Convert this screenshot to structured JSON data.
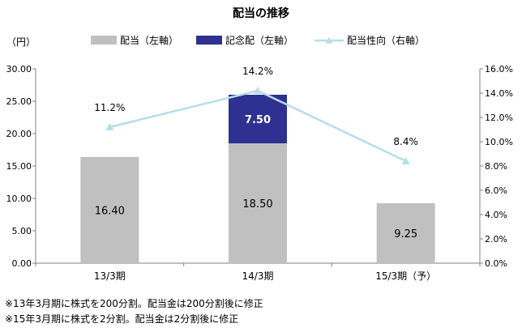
{
  "chart_data": {
    "type": "bar",
    "title": "配当の推移",
    "y_left_unit": "（円）",
    "categories": [
      "13/3期",
      "14/3期",
      "15/3期（予）"
    ],
    "ylim_left": [
      0,
      30
    ],
    "yticks_left": [
      "0.00",
      "5.00",
      "10.00",
      "15.00",
      "20.00",
      "25.00",
      "30.00"
    ],
    "ylim_right": [
      0,
      16
    ],
    "yticks_right": [
      "0.0%",
      "2.0%",
      "4.0%",
      "6.0%",
      "8.0%",
      "10.0%",
      "12.0%",
      "14.0%",
      "16.0%"
    ],
    "series": [
      {
        "name": "配当（左軸）",
        "kind": "bar",
        "axis": "left",
        "color": "#c0c0c0",
        "values": [
          16.4,
          18.5,
          9.25
        ],
        "labels": [
          "16.40",
          "18.50",
          "9.25"
        ],
        "label_color": "#000000"
      },
      {
        "name": "記念配（左軸）",
        "kind": "bar-stack",
        "axis": "left",
        "color": "#2e3192",
        "values": [
          null,
          7.5,
          null
        ],
        "labels": [
          "",
          "7.50",
          ""
        ],
        "label_color": "#ffffff"
      },
      {
        "name": "配当性向（右軸）",
        "kind": "line",
        "axis": "right",
        "color": "#b7dde8",
        "values": [
          11.2,
          14.2,
          8.4
        ],
        "labels": [
          "11.2%",
          "14.2%",
          "8.4%"
        ]
      }
    ],
    "legend_position": "top",
    "grid": false
  },
  "notes": [
    "※13年3月期に株式を200分割。配当金は200分割後に修正",
    "※15年3月期に株式を2分割。配当金は2分割後に修正"
  ]
}
